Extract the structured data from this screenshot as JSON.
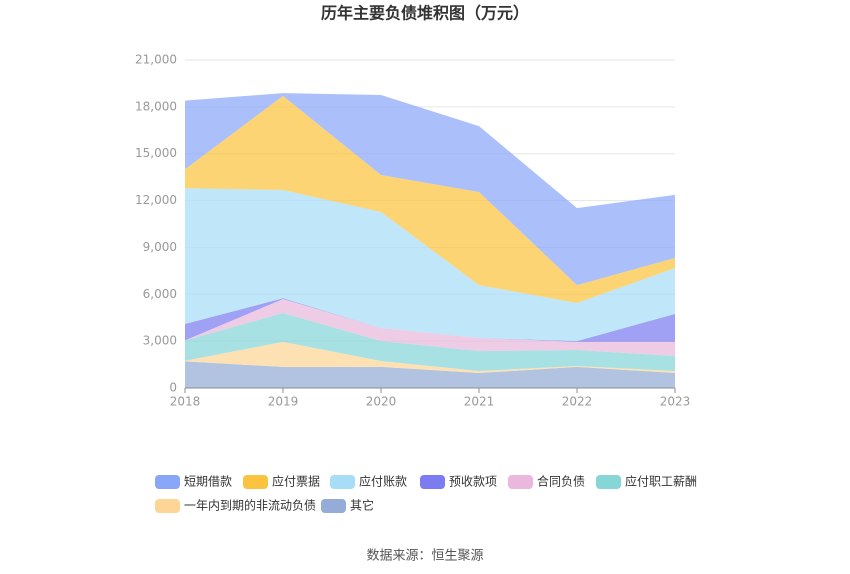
{
  "chart_data": {
    "type": "area",
    "stacked": true,
    "title": "历年主要负债堆积图（万元）",
    "categories": [
      "2018",
      "2019",
      "2020",
      "2021",
      "2022",
      "2023"
    ],
    "ylim": [
      0,
      21000
    ],
    "yticks": [
      0,
      3000,
      6000,
      9000,
      12000,
      15000,
      18000,
      21000
    ],
    "ytick_labels": [
      "0",
      "3,000",
      "6,000",
      "9,000",
      "12,000",
      "15,000",
      "18,000",
      "21,000"
    ],
    "grid": true,
    "legend_position": "bottom",
    "series": [
      {
        "name": "短期借款",
        "color": "#8aa6f8",
        "values": [
          4400,
          180,
          5120,
          4220,
          4930,
          4040
        ]
      },
      {
        "name": "应付票据",
        "color": "#fbc33f",
        "values": [
          1200,
          6020,
          2370,
          5960,
          1150,
          640
        ]
      },
      {
        "name": "应付账款",
        "color": "#a8ddf7",
        "values": [
          8700,
          6930,
          7430,
          3390,
          2440,
          2940
        ]
      },
      {
        "name": "预收款项",
        "color": "#7b7cf0",
        "values": [
          1050,
          50,
          0,
          0,
          50,
          1790
        ]
      },
      {
        "name": "合同负债",
        "color": "#e9b8dc",
        "values": [
          0,
          900,
          830,
          830,
          520,
          900
        ]
      },
      {
        "name": "应付职工薪酬",
        "color": "#86d6d8",
        "values": [
          1300,
          1850,
          1280,
          1280,
          1020,
          960
        ]
      },
      {
        "name": "一年内到期的非流动负债",
        "color": "#fdd595",
        "values": [
          50,
          1600,
          380,
          130,
          60,
          130
        ]
      },
      {
        "name": "其它",
        "color": "#94acd7",
        "values": [
          1700,
          1350,
          1350,
          960,
          1350,
          960
        ]
      }
    ]
  },
  "footer": {
    "source": "数据来源：恒生聚源"
  }
}
